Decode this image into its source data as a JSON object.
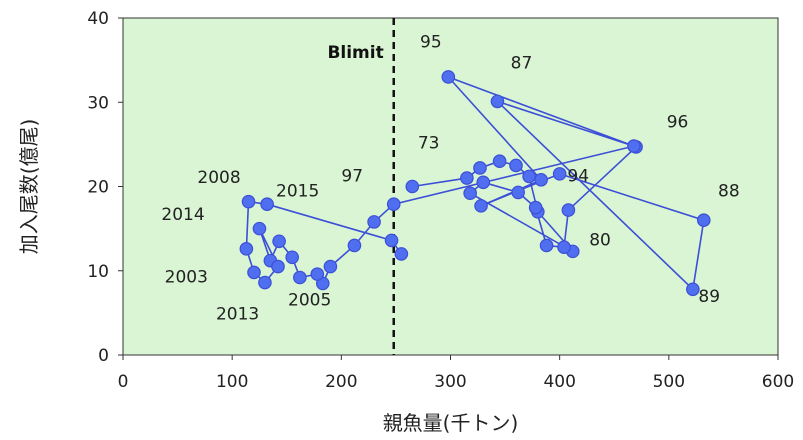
{
  "chart_data": {
    "type": "scatter",
    "xlabel": "親魚量(千トン)",
    "ylabel": "加入尾数(億尾)",
    "xlim": [
      0,
      600
    ],
    "ylim": [
      0,
      40
    ],
    "xticks": [
      0,
      100,
      200,
      300,
      400,
      500,
      600
    ],
    "yticks": [
      0,
      10,
      20,
      30,
      40
    ],
    "grid": false,
    "plot_background": "#d9f5d4",
    "series_color": "#3c4fd6",
    "marker_fill": "#4f6ff0",
    "reference_line": {
      "x": 248,
      "label": "Blimit",
      "style": "dashed"
    },
    "points": [
      [
        265,
        20.0
      ],
      [
        315,
        21.0
      ],
      [
        327,
        22.2
      ],
      [
        345,
        23.0
      ],
      [
        360,
        22.5
      ],
      [
        372,
        21.2
      ],
      [
        380,
        17.0
      ],
      [
        412,
        12.3
      ],
      [
        318,
        19.2
      ],
      [
        330,
        20.5
      ],
      [
        362,
        19.3
      ],
      [
        378,
        17.5
      ],
      [
        388,
        13.0
      ],
      [
        404,
        12.8
      ],
      [
        408,
        17.2
      ],
      [
        470,
        24.7
      ],
      [
        343,
        30.1
      ],
      [
        522,
        7.8
      ],
      [
        532,
        16.0
      ],
      [
        400,
        21.5
      ],
      [
        328,
        17.7
      ],
      [
        383,
        20.8
      ],
      [
        298,
        33.0
      ],
      [
        468,
        24.8
      ],
      [
        248,
        17.9
      ],
      [
        230,
        15.8
      ],
      [
        212,
        13.0
      ],
      [
        190,
        10.5
      ],
      [
        183,
        8.5
      ],
      [
        178,
        9.6
      ],
      [
        162,
        9.2
      ],
      [
        155,
        11.6
      ],
      [
        143,
        13.5
      ],
      [
        135,
        11.2
      ],
      [
        125,
        15.0
      ],
      [
        142,
        10.5
      ],
      [
        130,
        8.6
      ],
      [
        120,
        9.8
      ],
      [
        113,
        12.6
      ],
      [
        115,
        18.2
      ],
      [
        132,
        17.9
      ],
      [
        246,
        13.6
      ],
      [
        255,
        12.0
      ]
    ],
    "annotations": [
      {
        "text": "95",
        "x": 282,
        "y": 36.5
      },
      {
        "text": "87",
        "x": 365,
        "y": 34.0
      },
      {
        "text": "96",
        "x": 508,
        "y": 27.0
      },
      {
        "text": "73",
        "x": 280,
        "y": 24.5
      },
      {
        "text": "94",
        "x": 417,
        "y": 20.6
      },
      {
        "text": "88",
        "x": 555,
        "y": 18.8
      },
      {
        "text": "80",
        "x": 437,
        "y": 13.0
      },
      {
        "text": "89",
        "x": 537,
        "y": 6.3
      },
      {
        "text": "97",
        "x": 210,
        "y": 20.6
      },
      {
        "text": "2015",
        "x": 160,
        "y": 18.8
      },
      {
        "text": "2008",
        "x": 88,
        "y": 20.4
      },
      {
        "text": "2014",
        "x": 55,
        "y": 16.0
      },
      {
        "text": "2003",
        "x": 58,
        "y": 8.6
      },
      {
        "text": "2013",
        "x": 105,
        "y": 4.2
      },
      {
        "text": "2005",
        "x": 171,
        "y": 5.9
      }
    ]
  }
}
